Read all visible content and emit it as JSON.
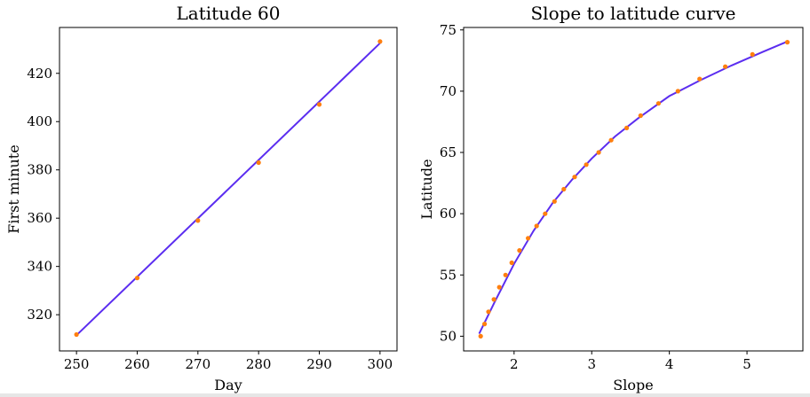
{
  "colors": {
    "line": "#5b2df0",
    "points": "#ff7f0e",
    "footer": "#e6e6e6"
  },
  "chart_data": [
    {
      "type": "line",
      "title": "Latitude 60",
      "xlabel": "Day",
      "ylabel": "First minute",
      "xlim": [
        247.2,
        302.8
      ],
      "ylim": [
        305,
        439
      ],
      "xticks": [
        250,
        260,
        270,
        280,
        290,
        300
      ],
      "yticks": [
        320,
        340,
        360,
        380,
        400,
        420
      ],
      "series": [
        {
          "role": "fit",
          "style": "line",
          "x": [
            250,
            300
          ],
          "y": [
            311.5,
            432.5
          ]
        },
        {
          "role": "observed",
          "style": "points",
          "x": [
            250,
            260,
            270,
            280,
            290,
            300
          ],
          "y": [
            311.8,
            335.2,
            359.0,
            383.0,
            407.1,
            433.2
          ]
        }
      ]
    },
    {
      "type": "line",
      "title": "Slope to latitude curve",
      "xlabel": "Slope",
      "ylabel": "Latitude",
      "xlim": [
        1.35,
        5.72
      ],
      "ylim": [
        48.8,
        75.2
      ],
      "xticks": [
        2,
        3,
        4,
        5
      ],
      "yticks": [
        50,
        55,
        60,
        65,
        70,
        75
      ],
      "series": [
        {
          "role": "fit",
          "style": "line",
          "x": [
            1.55,
            1.75,
            2.0,
            2.25,
            2.5,
            2.75,
            3.0,
            3.3,
            3.6,
            4.0,
            4.4,
            4.8,
            5.2,
            5.5
          ],
          "y": [
            50.2,
            52.8,
            55.9,
            58.6,
            60.9,
            62.8,
            64.5,
            66.3,
            67.8,
            69.6,
            70.9,
            72.1,
            73.2,
            74.0
          ]
        },
        {
          "role": "observed",
          "style": "points",
          "x": [
            1.57,
            1.62,
            1.67,
            1.74,
            1.81,
            1.89,
            1.97,
            2.07,
            2.18,
            2.29,
            2.4,
            2.52,
            2.64,
            2.78,
            2.93,
            3.09,
            3.25,
            3.45,
            3.63,
            3.86,
            4.11,
            4.39,
            4.72,
            5.07,
            5.52
          ],
          "y": [
            50,
            51,
            52,
            53,
            54,
            55,
            56,
            57,
            58,
            59,
            60,
            61,
            62,
            63,
            64,
            65,
            66,
            67,
            68,
            69,
            70,
            71,
            72,
            73,
            74
          ]
        }
      ]
    }
  ]
}
